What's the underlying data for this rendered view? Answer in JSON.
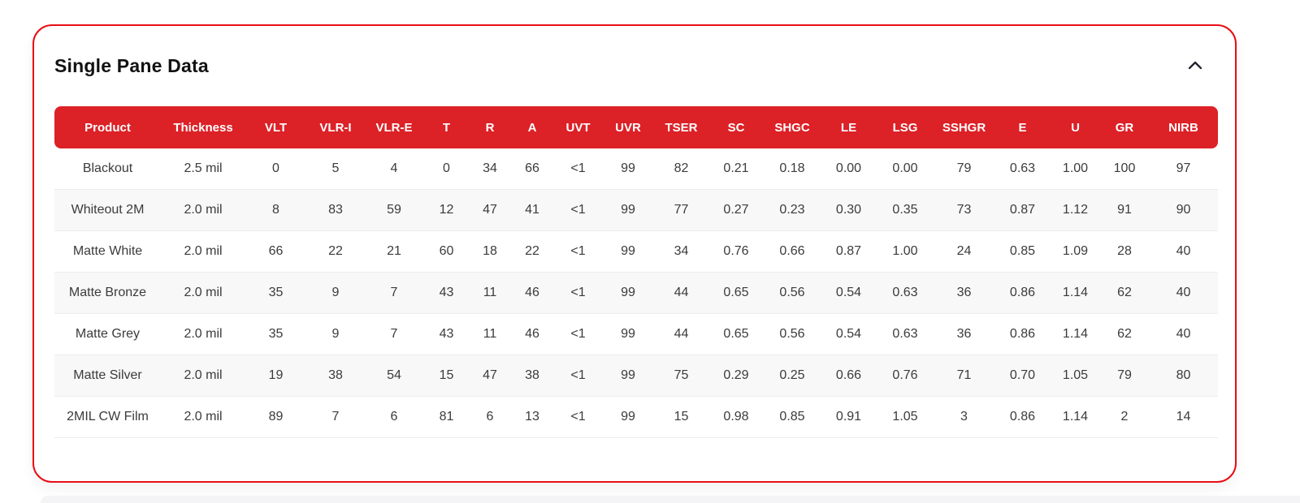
{
  "card": {
    "title": "Single Pane Data"
  },
  "table": {
    "columns": [
      "Product",
      "Thickness",
      "VLT",
      "VLR-I",
      "VLR-E",
      "T",
      "R",
      "A",
      "UVT",
      "UVR",
      "TSER",
      "SC",
      "SHGC",
      "LE",
      "LSG",
      "SSHGR",
      "E",
      "U",
      "GR",
      "NIRB"
    ],
    "rows": [
      [
        "Blackout",
        "2.5 mil",
        "0",
        "5",
        "4",
        "0",
        "34",
        "66",
        "<1",
        "99",
        "82",
        "0.21",
        "0.18",
        "0.00",
        "0.00",
        "79",
        "0.63",
        "1.00",
        "100",
        "97"
      ],
      [
        "Whiteout 2M",
        "2.0 mil",
        "8",
        "83",
        "59",
        "12",
        "47",
        "41",
        "<1",
        "99",
        "77",
        "0.27",
        "0.23",
        "0.30",
        "0.35",
        "73",
        "0.87",
        "1.12",
        "91",
        "90"
      ],
      [
        "Matte White",
        "2.0 mil",
        "66",
        "22",
        "21",
        "60",
        "18",
        "22",
        "<1",
        "99",
        "34",
        "0.76",
        "0.66",
        "0.87",
        "1.00",
        "24",
        "0.85",
        "1.09",
        "28",
        "40"
      ],
      [
        "Matte Bronze",
        "2.0 mil",
        "35",
        "9",
        "7",
        "43",
        "11",
        "46",
        "<1",
        "99",
        "44",
        "0.65",
        "0.56",
        "0.54",
        "0.63",
        "36",
        "0.86",
        "1.14",
        "62",
        "40"
      ],
      [
        "Matte Grey",
        "2.0 mil",
        "35",
        "9",
        "7",
        "43",
        "11",
        "46",
        "<1",
        "99",
        "44",
        "0.65",
        "0.56",
        "0.54",
        "0.63",
        "36",
        "0.86",
        "1.14",
        "62",
        "40"
      ],
      [
        "Matte Silver",
        "2.0 mil",
        "19",
        "38",
        "54",
        "15",
        "47",
        "38",
        "<1",
        "99",
        "75",
        "0.29",
        "0.25",
        "0.66",
        "0.76",
        "71",
        "0.70",
        "1.05",
        "79",
        "80"
      ],
      [
        "2MIL CW Film",
        "2.0 mil",
        "89",
        "7",
        "6",
        "81",
        "6",
        "13",
        "<1",
        "99",
        "15",
        "0.98",
        "0.85",
        "0.91",
        "1.05",
        "3",
        "0.86",
        "1.14",
        "2",
        "14"
      ]
    ]
  },
  "colors": {
    "header_bg": "#dc2127",
    "card_border": "#e90d14",
    "alt_row_bg": "#f8f8f9",
    "row_divider": "#ececec",
    "cell_text": "#3b3b3b",
    "title_text": "#121212"
  }
}
